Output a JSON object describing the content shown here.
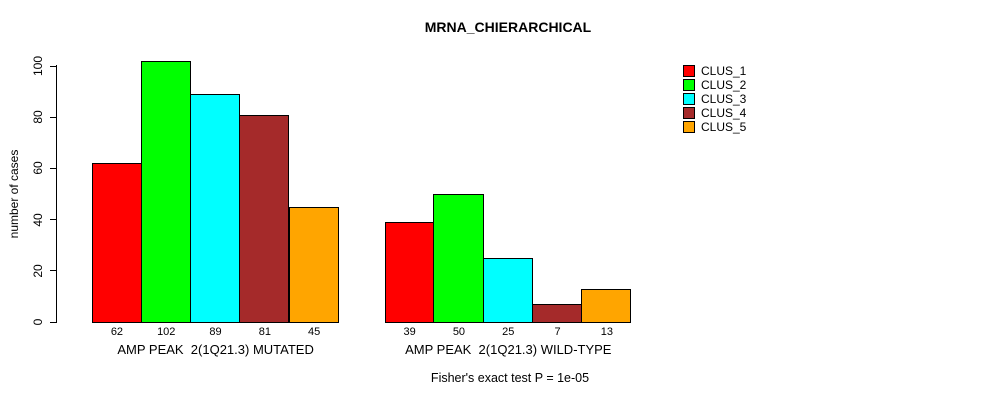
{
  "chart_data": {
    "type": "bar",
    "title": "MRNA_CHIERARCHICAL",
    "ylabel": "number of cases",
    "xlabel": "",
    "ylim": [
      0,
      100
    ],
    "yticks": [
      0,
      20,
      40,
      60,
      80,
      100
    ],
    "grid": false,
    "legend_position": "right",
    "categories": [
      "AMP PEAK  2(1Q21.3) MUTATED",
      "AMP PEAK  2(1Q21.3) WILD-TYPE"
    ],
    "series": [
      {
        "name": "CLUS_1",
        "color": "#FF0000",
        "values": [
          62,
          39
        ]
      },
      {
        "name": "CLUS_2",
        "color": "#00FF00",
        "values": [
          102,
          50
        ]
      },
      {
        "name": "CLUS_3",
        "color": "#00FFFF",
        "values": [
          89,
          25
        ]
      },
      {
        "name": "CLUS_4",
        "color": "#A52A2A",
        "values": [
          81,
          7
        ]
      },
      {
        "name": "CLUS_5",
        "color": "#FFA500",
        "values": [
          45,
          13
        ]
      }
    ],
    "bar_value_labels": [
      [
        62,
        102,
        89,
        81,
        45
      ],
      [
        39,
        50,
        25,
        7,
        13
      ]
    ],
    "annotation": "Fisher's exact test P = 1e-05"
  }
}
